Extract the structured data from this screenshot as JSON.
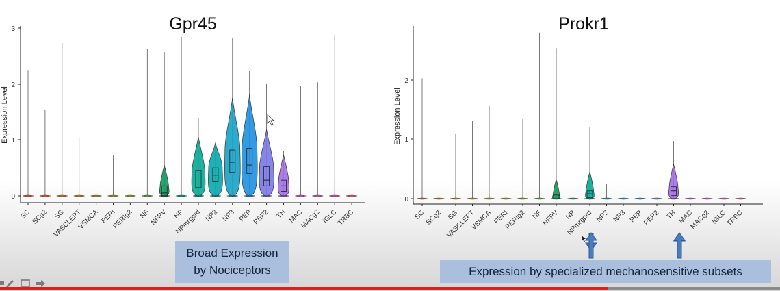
{
  "charts": [
    {
      "title": "Gpr45",
      "ylabel": "Expression Level",
      "y_ticks": [
        "0",
        "1",
        "2",
        "3"
      ]
    },
    {
      "title": "Prokr1",
      "ylabel": "Expression Level",
      "y_ticks": [
        "0",
        "1",
        "2"
      ]
    }
  ],
  "chart_data": [
    {
      "type": "violin",
      "title": "Gpr45",
      "xlabel": "",
      "ylabel": "Expression Level",
      "ylim": [
        0,
        3
      ],
      "categories": [
        "SC",
        "SCg2",
        "SG",
        "VASCLEPT",
        "VSMCA",
        "PERI",
        "PERIg2",
        "NF",
        "NFPV",
        "NP",
        "NPmrgprd",
        "NP2",
        "NP3",
        "PEP",
        "PEP2",
        "TH",
        "MAC",
        "MACg2",
        "IGLC",
        "TRBC"
      ],
      "max_values": [
        2.25,
        1.53,
        2.73,
        1.05,
        0,
        0.73,
        0,
        2.62,
        2.57,
        2.84,
        1.39,
        0.95,
        2.83,
        2.24,
        2.01,
        0.8,
        1.97,
        2.03,
        2.88,
        0
      ],
      "box_median": [
        0,
        0,
        0,
        0,
        0,
        0,
        0,
        0,
        0.05,
        0,
        0.3,
        0.37,
        0.6,
        0.55,
        0.28,
        0.18,
        0,
        0,
        0,
        0
      ],
      "box_q1": [
        0,
        0,
        0,
        0,
        0,
        0,
        0,
        0,
        0,
        0,
        0.15,
        0.25,
        0.42,
        0.4,
        0.18,
        0.08,
        0,
        0,
        0,
        0
      ],
      "box_q3": [
        0,
        0,
        0,
        0,
        0,
        0,
        0,
        0,
        0.18,
        0,
        0.45,
        0.5,
        0.82,
        0.85,
        0.52,
        0.28,
        0,
        0,
        0,
        0
      ],
      "colors": [
        "#e05a1f",
        "#dd6b18",
        "#d47f10",
        "#c88e08",
        "#b79a05",
        "#a3a310",
        "#89aa20",
        "#5db030",
        "#0f9a5e",
        "#05a37a",
        "#04a894",
        "#05a7ad",
        "#16a2c8",
        "#1e90e0",
        "#7a79e6",
        "#a36ee5",
        "#c262db",
        "#d85bc7",
        "#e65aa9",
        "#ee5f86"
      ]
    },
    {
      "type": "violin",
      "title": "Prokr1",
      "xlabel": "",
      "ylabel": "Expression Level",
      "ylim": [
        0,
        2.9
      ],
      "categories": [
        "SC",
        "SCg2",
        "SG",
        "VASCLEPT",
        "VSMCA",
        "PERI",
        "PERIg2",
        "NF",
        "NFPV",
        "NP",
        "NPmrgprd",
        "NP2",
        "NP3",
        "PEP",
        "PEP2",
        "TH",
        "MAC",
        "MACg2",
        "IGLC",
        "TRBC"
      ],
      "max_values": [
        2.03,
        0,
        1.1,
        1.31,
        1.56,
        1.74,
        1.34,
        2.8,
        2.54,
        2.77,
        1.2,
        0.25,
        0,
        1.8,
        0,
        0.97,
        0,
        2.36,
        0,
        0
      ],
      "box_median": [
        0,
        0,
        0,
        0,
        0,
        0,
        0,
        0,
        0.03,
        0,
        0.08,
        0,
        0,
        0,
        0,
        0.13,
        0,
        0,
        0,
        0
      ],
      "box_q1": [
        0,
        0,
        0,
        0,
        0,
        0,
        0,
        0,
        0,
        0,
        0.02,
        0,
        0,
        0,
        0,
        0.05,
        0,
        0,
        0,
        0
      ],
      "box_q3": [
        0,
        0,
        0,
        0,
        0,
        0,
        0,
        0,
        0.06,
        0,
        0.13,
        0,
        0,
        0,
        0,
        0.2,
        0,
        0,
        0,
        0
      ],
      "colors": [
        "#e05a1f",
        "#dd6b18",
        "#d47f10",
        "#c88e08",
        "#b79a05",
        "#a3a310",
        "#89aa20",
        "#5db030",
        "#0f9a5e",
        "#05a37a",
        "#04a894",
        "#05a7ad",
        "#16a2c8",
        "#1e90e0",
        "#7a79e6",
        "#a36ee5",
        "#c262db",
        "#d85bc7",
        "#e65aa9",
        "#ee5f86"
      ]
    }
  ],
  "annotations": {
    "broad_line1": "Broad Expression",
    "broad_line2": "by Nociceptors",
    "mech_text": "Expression by specialized mechanosensitive subsets"
  },
  "player": {
    "progress": 0.78,
    "accent_color": "#e21b1b"
  }
}
